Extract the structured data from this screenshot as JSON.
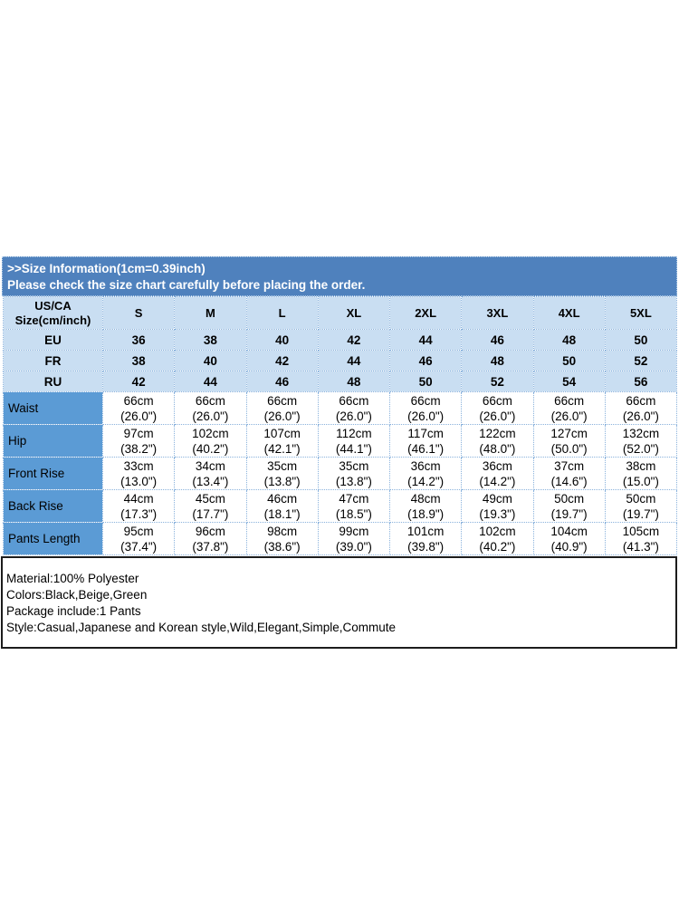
{
  "banner": {
    "line1": ">>Size Information(1cm=0.39inch)",
    "line2": "Please check the size chart carefully before placing the order."
  },
  "colors": {
    "banner_bg": "#4F81BD",
    "light_row_bg": "#C9DEF2",
    "label_column_bg": "#5B9BD5",
    "grid_border": "#8AB2DC",
    "info_border": "#1C1C1C"
  },
  "table": {
    "corner_label": "US/CA\nSize(cm/inch)",
    "size_headers": [
      "S",
      "M",
      "L",
      "XL",
      "2XL",
      "3XL",
      "4XL",
      "5XL"
    ],
    "conversion_rows": [
      {
        "label": "EU",
        "values": [
          "36",
          "38",
          "40",
          "42",
          "44",
          "46",
          "48",
          "50"
        ]
      },
      {
        "label": "FR",
        "values": [
          "38",
          "40",
          "42",
          "44",
          "46",
          "48",
          "50",
          "52"
        ]
      },
      {
        "label": "RU",
        "values": [
          "42",
          "44",
          "46",
          "48",
          "50",
          "52",
          "54",
          "56"
        ]
      }
    ],
    "measurement_rows": [
      {
        "label": "Waist",
        "values": [
          "66cm\n(26.0\")",
          "66cm\n(26.0\")",
          "66cm\n(26.0\")",
          "66cm\n(26.0\")",
          "66cm\n(26.0\")",
          "66cm\n(26.0\")",
          "66cm\n(26.0\")",
          "66cm\n(26.0\")"
        ]
      },
      {
        "label": "Hip",
        "values": [
          "97cm\n(38.2\")",
          "102cm\n(40.2\")",
          "107cm\n(42.1\")",
          "112cm\n(44.1\")",
          "117cm\n(46.1\")",
          "122cm\n(48.0\")",
          "127cm\n(50.0\")",
          "132cm\n(52.0\")"
        ]
      },
      {
        "label": "Front Rise",
        "values": [
          "33cm\n(13.0\")",
          "34cm\n(13.4\")",
          "35cm\n(13.8\")",
          "35cm\n(13.8\")",
          "36cm\n(14.2\")",
          "36cm\n(14.2\")",
          "37cm\n(14.6\")",
          "38cm\n(15.0\")"
        ]
      },
      {
        "label": "Back Rise",
        "values": [
          "44cm\n(17.3\")",
          "45cm\n(17.7\")",
          "46cm\n(18.1\")",
          "47cm\n(18.5\")",
          "48cm\n(18.9\")",
          "49cm\n(19.3\")",
          "50cm\n(19.7\")",
          "50cm\n(19.7\")"
        ]
      },
      {
        "label": "Pants Length",
        "values": [
          "95cm\n(37.4\")",
          "96cm\n(37.8\")",
          "98cm\n(38.6\")",
          "99cm\n(39.0\")",
          "101cm\n(39.8\")",
          "102cm\n(40.2\")",
          "104cm\n(40.9\")",
          "105cm\n(41.3\")"
        ]
      }
    ]
  },
  "product_info": {
    "lines": [
      "Material:100% Polyester",
      "Colors:Black,Beige,Green",
      "Package include:1 Pants",
      "Style:Casual,Japanese and Korean style,Wild,Elegant,Simple,Commute"
    ]
  }
}
